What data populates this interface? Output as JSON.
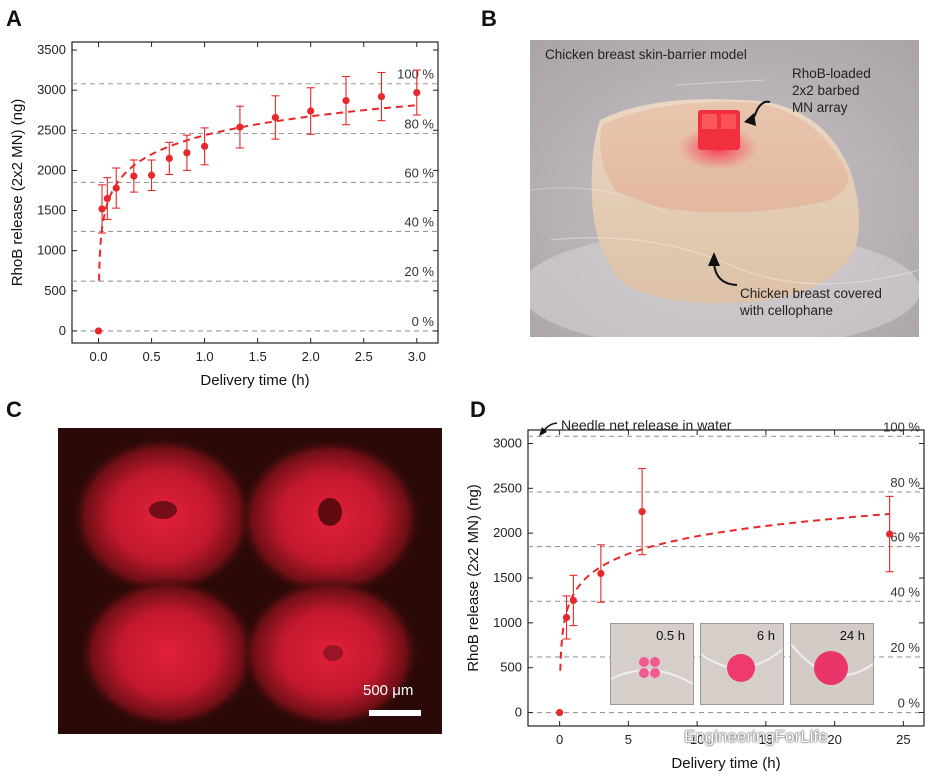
{
  "panels": {
    "a": "A",
    "b": "B",
    "c": "C",
    "d": "D"
  },
  "chart_data": [
    {
      "type": "scatter",
      "id": "A",
      "title": "",
      "xlabel": "Delivery time (h)",
      "ylabel": "RhoB release (2x2 MN) (ng)",
      "xlim": [
        -0.25,
        3.2
      ],
      "ylim": [
        -150,
        3600
      ],
      "xticks": [
        0.0,
        0.5,
        1.0,
        1.5,
        2.0,
        2.5,
        3.0
      ],
      "xtick_labels": [
        "0.0",
        "0.5",
        "1.0",
        "1.5",
        "2.0",
        "2.5",
        "3.0"
      ],
      "yticks": [
        0,
        500,
        1000,
        1500,
        2000,
        2500,
        3000,
        3500
      ],
      "ytick_labels": [
        "0",
        "500",
        "1000",
        "1500",
        "2000",
        "2500",
        "3000",
        "3500"
      ],
      "percent_lines": [
        {
          "value": 0,
          "label": "0 %"
        },
        {
          "value": 620,
          "label": "20 %"
        },
        {
          "value": 1240,
          "label": "40 %"
        },
        {
          "value": 1850,
          "label": "60 %"
        },
        {
          "value": 2460,
          "label": "80 %"
        },
        {
          "value": 3080,
          "label": "100 %"
        }
      ],
      "series": [
        {
          "name": "RhoB release",
          "x": [
            0.0,
            0.033,
            0.083,
            0.167,
            0.333,
            0.5,
            0.667,
            0.833,
            1.0,
            1.333,
            1.667,
            2.0,
            2.333,
            2.667,
            3.0
          ],
          "y": [
            0,
            1520,
            1650,
            1780,
            1930,
            1940,
            2150,
            2220,
            2300,
            2540,
            2660,
            2740,
            2870,
            2920,
            2970
          ],
          "err": [
            0,
            300,
            260,
            250,
            200,
            190,
            200,
            220,
            230,
            260,
            270,
            290,
            300,
            300,
            280
          ]
        }
      ],
      "fit": {
        "style": "dashed",
        "x_start": 0.005,
        "x_end": 3.0
      }
    },
    {
      "type": "scatter",
      "id": "D",
      "title": "",
      "xlabel": "Delivery time (h)",
      "ylabel": "RhoB release (2x2 MN) (ng)",
      "xlim": [
        -2.3,
        26.5
      ],
      "ylim": [
        -150,
        3150
      ],
      "xticks": [
        0,
        5,
        10,
        15,
        20,
        25
      ],
      "xtick_labels": [
        "0",
        "5",
        "10",
        "15",
        "20",
        "25"
      ],
      "yticks": [
        0,
        500,
        1000,
        1500,
        2000,
        2500,
        3000
      ],
      "ytick_labels": [
        "0",
        "500",
        "1000",
        "1500",
        "2000",
        "2500",
        "3000"
      ],
      "percent_lines": [
        {
          "value": 0,
          "label": "0 %"
        },
        {
          "value": 620,
          "label": "20 %"
        },
        {
          "value": 1240,
          "label": "40 %"
        },
        {
          "value": 1850,
          "label": "60 %"
        },
        {
          "value": 2460,
          "label": "80 %"
        },
        {
          "value": 3080,
          "label": "100 %"
        }
      ],
      "annotation": "Needle net release in water",
      "series": [
        {
          "name": "RhoB release",
          "x": [
            0,
            0.5,
            1,
            3,
            6,
            24
          ],
          "y": [
            0,
            1060,
            1250,
            1550,
            2240,
            1990
          ],
          "err": [
            0,
            240,
            280,
            320,
            480,
            420
          ]
        }
      ],
      "fit": {
        "style": "dashed",
        "x_start": 0.05,
        "x_end": 24
      },
      "insets": [
        {
          "label": "0.5 h",
          "color": "#f25b8f"
        },
        {
          "label": "6 h",
          "color": "#ee3a6e"
        },
        {
          "label": "24 h",
          "color": "#e8356a"
        }
      ]
    }
  ],
  "panel_b": {
    "model_label": "Chicken breast skin-barrier model",
    "array_label": [
      "RhoB-loaded",
      "2x2 barbed",
      "MN array"
    ],
    "tissue_label": [
      "Chicken breast covered",
      "with cellophane"
    ]
  },
  "panel_c": {
    "scale_label": "500 μm"
  },
  "watermark": "EngineeringForLife"
}
